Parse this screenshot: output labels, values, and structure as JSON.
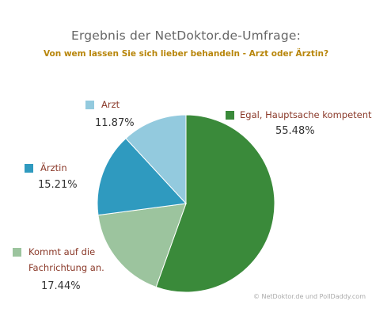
{
  "chart_data": {
    "type": "pie",
    "title": "Ergebnis der NetDoktor.de-Umfrage:",
    "subtitle": "Von wem lassen Sie sich lieber behandeln - Arzt oder Ärztin?",
    "credit": "© NetDoktor.de und PollDaddy.com",
    "slices": [
      {
        "label": "Egal, Hauptsache kompetent.",
        "percent_text": "55.48%",
        "value": 55.48,
        "color": "#3a8a3a"
      },
      {
        "label": "Kommt auf die Fachrichtung an.",
        "label_line1": "Kommt auf die",
        "label_line2": "Fachrichtung an.",
        "percent_text": "17.44%",
        "value": 17.44,
        "color": "#9cc49e"
      },
      {
        "label": "Ärztin",
        "percent_text": "15.21%",
        "value": 15.21,
        "color": "#2f9abf"
      },
      {
        "label": "Arzt",
        "percent_text": "11.87%",
        "value": 11.87,
        "color": "#93cade"
      }
    ]
  }
}
